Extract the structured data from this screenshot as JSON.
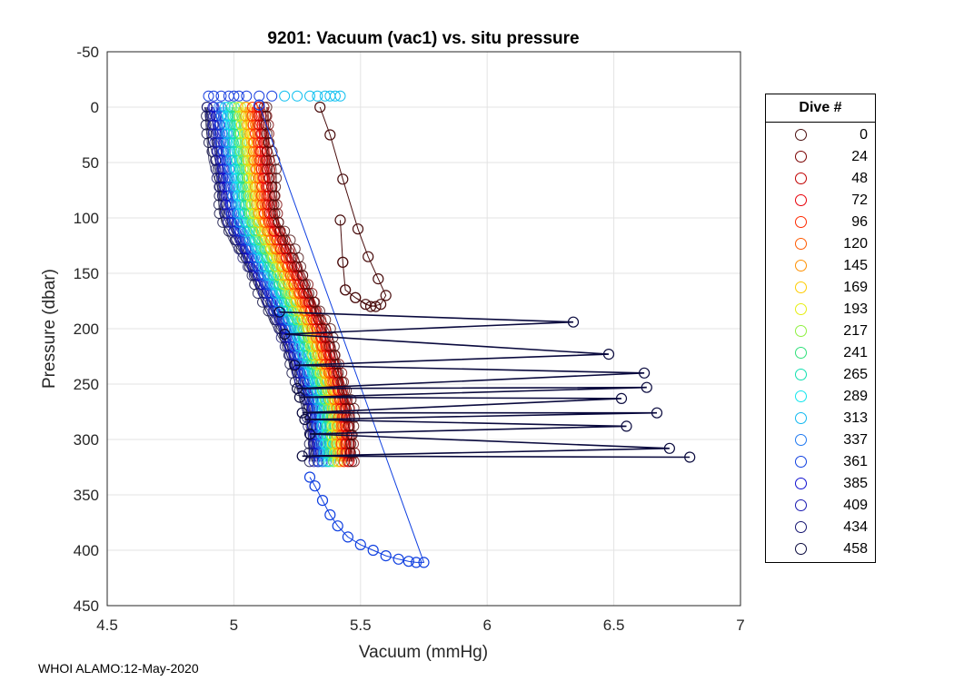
{
  "chart_data": {
    "type": "scatter",
    "title": "9201: Vacuum (vac1) vs. situ pressure",
    "xlabel": "Vacuum (mmHg)",
    "ylabel": "Pressure (dbar)",
    "xlim": [
      4.5,
      7
    ],
    "ylim": [
      -50,
      450
    ],
    "y_reversed": true,
    "grid": true,
    "xticks": [
      "4.5",
      "5",
      "5.5",
      "6",
      "6.5",
      "7"
    ],
    "yticks": [
      "-50",
      "0",
      "50",
      "100",
      "150",
      "200",
      "250",
      "300",
      "350",
      "400",
      "450"
    ],
    "legend_title": "Dive #",
    "legend_position": "outside-right",
    "colormap": [
      "#4a0e0e",
      "#7a0000",
      "#c00000",
      "#e8000a",
      "#ff2a00",
      "#ff5a00",
      "#ff9000",
      "#ffcc00",
      "#e6ee10",
      "#8ef040",
      "#30e07a",
      "#10e0b0",
      "#10e6ee",
      "#10b8f0",
      "#1f78f0",
      "#1040e0",
      "#1010d0",
      "#1818b0",
      "#141470",
      "#0a0a3e"
    ],
    "series": [
      {
        "name": "0",
        "color": "#4a0e0e",
        "points": [
          [
            5.34,
            0
          ],
          [
            5.38,
            25
          ],
          [
            5.43,
            65
          ],
          [
            5.49,
            110
          ],
          [
            5.53,
            135
          ],
          [
            5.57,
            155
          ],
          [
            5.6,
            170
          ],
          [
            5.58,
            178
          ],
          [
            5.54,
            180
          ],
          [
            5.48,
            172
          ],
          [
            5.44,
            165
          ],
          [
            5.43,
            140
          ],
          [
            5.42,
            102
          ],
          [
            5.43,
            140
          ],
          [
            5.44,
            165
          ],
          [
            5.48,
            172
          ],
          [
            5.52,
            178
          ],
          [
            5.56,
            180
          ]
        ]
      },
      {
        "name": "24",
        "color": "#7a0000",
        "points": []
      },
      {
        "name": "48",
        "color": "#c00000",
        "points": []
      },
      {
        "name": "72",
        "color": "#e8000a",
        "points": []
      },
      {
        "name": "96",
        "color": "#ff2a00",
        "points": []
      },
      {
        "name": "120",
        "color": "#ff5a00",
        "points": []
      },
      {
        "name": "145",
        "color": "#ff9000",
        "points": []
      },
      {
        "name": "169",
        "color": "#ffcc00",
        "points": []
      },
      {
        "name": "193",
        "color": "#e6ee10",
        "points": []
      },
      {
        "name": "217",
        "color": "#8ef040",
        "points": []
      },
      {
        "name": "241",
        "color": "#30e07a",
        "points": []
      },
      {
        "name": "265",
        "color": "#10e0b0",
        "points": []
      },
      {
        "name": "289",
        "color": "#10e6ee",
        "points": []
      },
      {
        "name": "313",
        "color": "#10b8f0",
        "points": []
      },
      {
        "name": "337",
        "color": "#1f78f0",
        "points": []
      },
      {
        "name": "361",
        "color": "#1040e0",
        "points": [
          [
            5.1,
            -2
          ],
          [
            5.75,
            411
          ],
          [
            5.72,
            411
          ],
          [
            5.69,
            410
          ],
          [
            5.65,
            408
          ],
          [
            5.6,
            405
          ],
          [
            5.55,
            400
          ],
          [
            5.5,
            395
          ],
          [
            5.45,
            388
          ],
          [
            5.41,
            378
          ],
          [
            5.38,
            368
          ],
          [
            5.35,
            355
          ],
          [
            5.32,
            342
          ],
          [
            5.3,
            334
          ]
        ]
      },
      {
        "name": "385",
        "color": "#1010d0",
        "points": []
      },
      {
        "name": "409",
        "color": "#1818b0",
        "points": []
      },
      {
        "name": "434",
        "color": "#141470",
        "points": []
      },
      {
        "name": "458",
        "color": "#0a0a3e",
        "points": [
          [
            5.18,
            185
          ],
          [
            6.34,
            194
          ],
          [
            5.2,
            205
          ],
          [
            6.48,
            223
          ],
          [
            5.24,
            233
          ],
          [
            6.62,
            240
          ],
          [
            5.25,
            254
          ],
          [
            6.63,
            253
          ],
          [
            5.26,
            262
          ],
          [
            6.53,
            263
          ],
          [
            5.27,
            276
          ],
          [
            6.67,
            276
          ],
          [
            5.28,
            282
          ],
          [
            6.55,
            288
          ],
          [
            5.3,
            295
          ],
          [
            6.72,
            308
          ],
          [
            5.27,
            315
          ],
          [
            6.8,
            316
          ]
        ]
      }
    ],
    "surface_markers": {
      "x": [
        4.9,
        4.92,
        4.95,
        4.98,
        5.0,
        5.02,
        5.05,
        5.1,
        5.15,
        5.2,
        5.25,
        5.3,
        5.33,
        5.36,
        5.38,
        5.4,
        5.42
      ],
      "y": -10
    }
  },
  "footer": "WHOI ALAMO:12-May-2020"
}
